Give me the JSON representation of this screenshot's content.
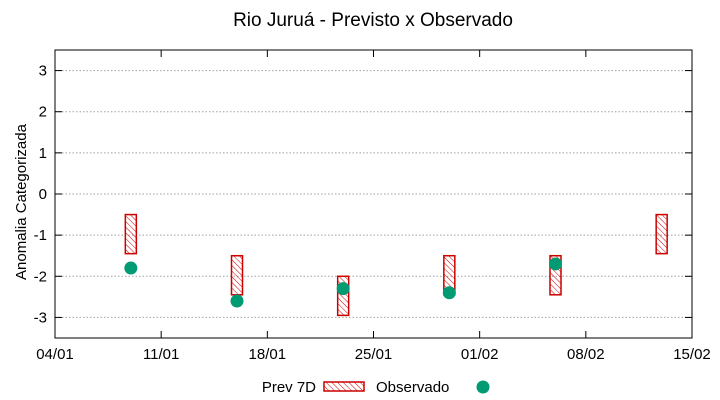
{
  "chart_data": {
    "type": "scatter",
    "title": "Rio Juruá - Previsto x Observado",
    "xlabel": "",
    "ylabel": "Anomalia Categorizada",
    "x_tick_labels": [
      "04/01",
      "11/01",
      "18/01",
      "25/01",
      "01/02",
      "08/02",
      "15/02"
    ],
    "x_tick_days": [
      0,
      7,
      14,
      21,
      28,
      35,
      42
    ],
    "y_ticks": [
      3,
      2,
      1,
      0,
      -1,
      -2,
      -3
    ],
    "xlim_days": [
      0,
      42
    ],
    "ylim": [
      -3.5,
      3.5
    ],
    "grid": true,
    "legend_position": "bottom",
    "series": [
      {
        "name": "Prev 7D",
        "style": "hatched-box",
        "color": "#cc0000",
        "points": [
          {
            "day": 5,
            "low": -1.45,
            "high": -0.5
          },
          {
            "day": 12,
            "low": -2.45,
            "high": -1.5
          },
          {
            "day": 19,
            "low": -2.95,
            "high": -2.0
          },
          {
            "day": 26,
            "low": -2.45,
            "high": -1.5
          },
          {
            "day": 33,
            "low": -2.45,
            "high": -1.5
          },
          {
            "day": 40,
            "low": -1.45,
            "high": -0.5
          }
        ]
      },
      {
        "name": "Observado",
        "style": "circle",
        "color": "#009b72",
        "points": [
          {
            "day": 5,
            "value": -1.8
          },
          {
            "day": 12,
            "value": -2.6
          },
          {
            "day": 19,
            "value": -2.3
          },
          {
            "day": 26,
            "value": -2.4
          },
          {
            "day": 33,
            "value": -1.7
          }
        ]
      }
    ]
  }
}
